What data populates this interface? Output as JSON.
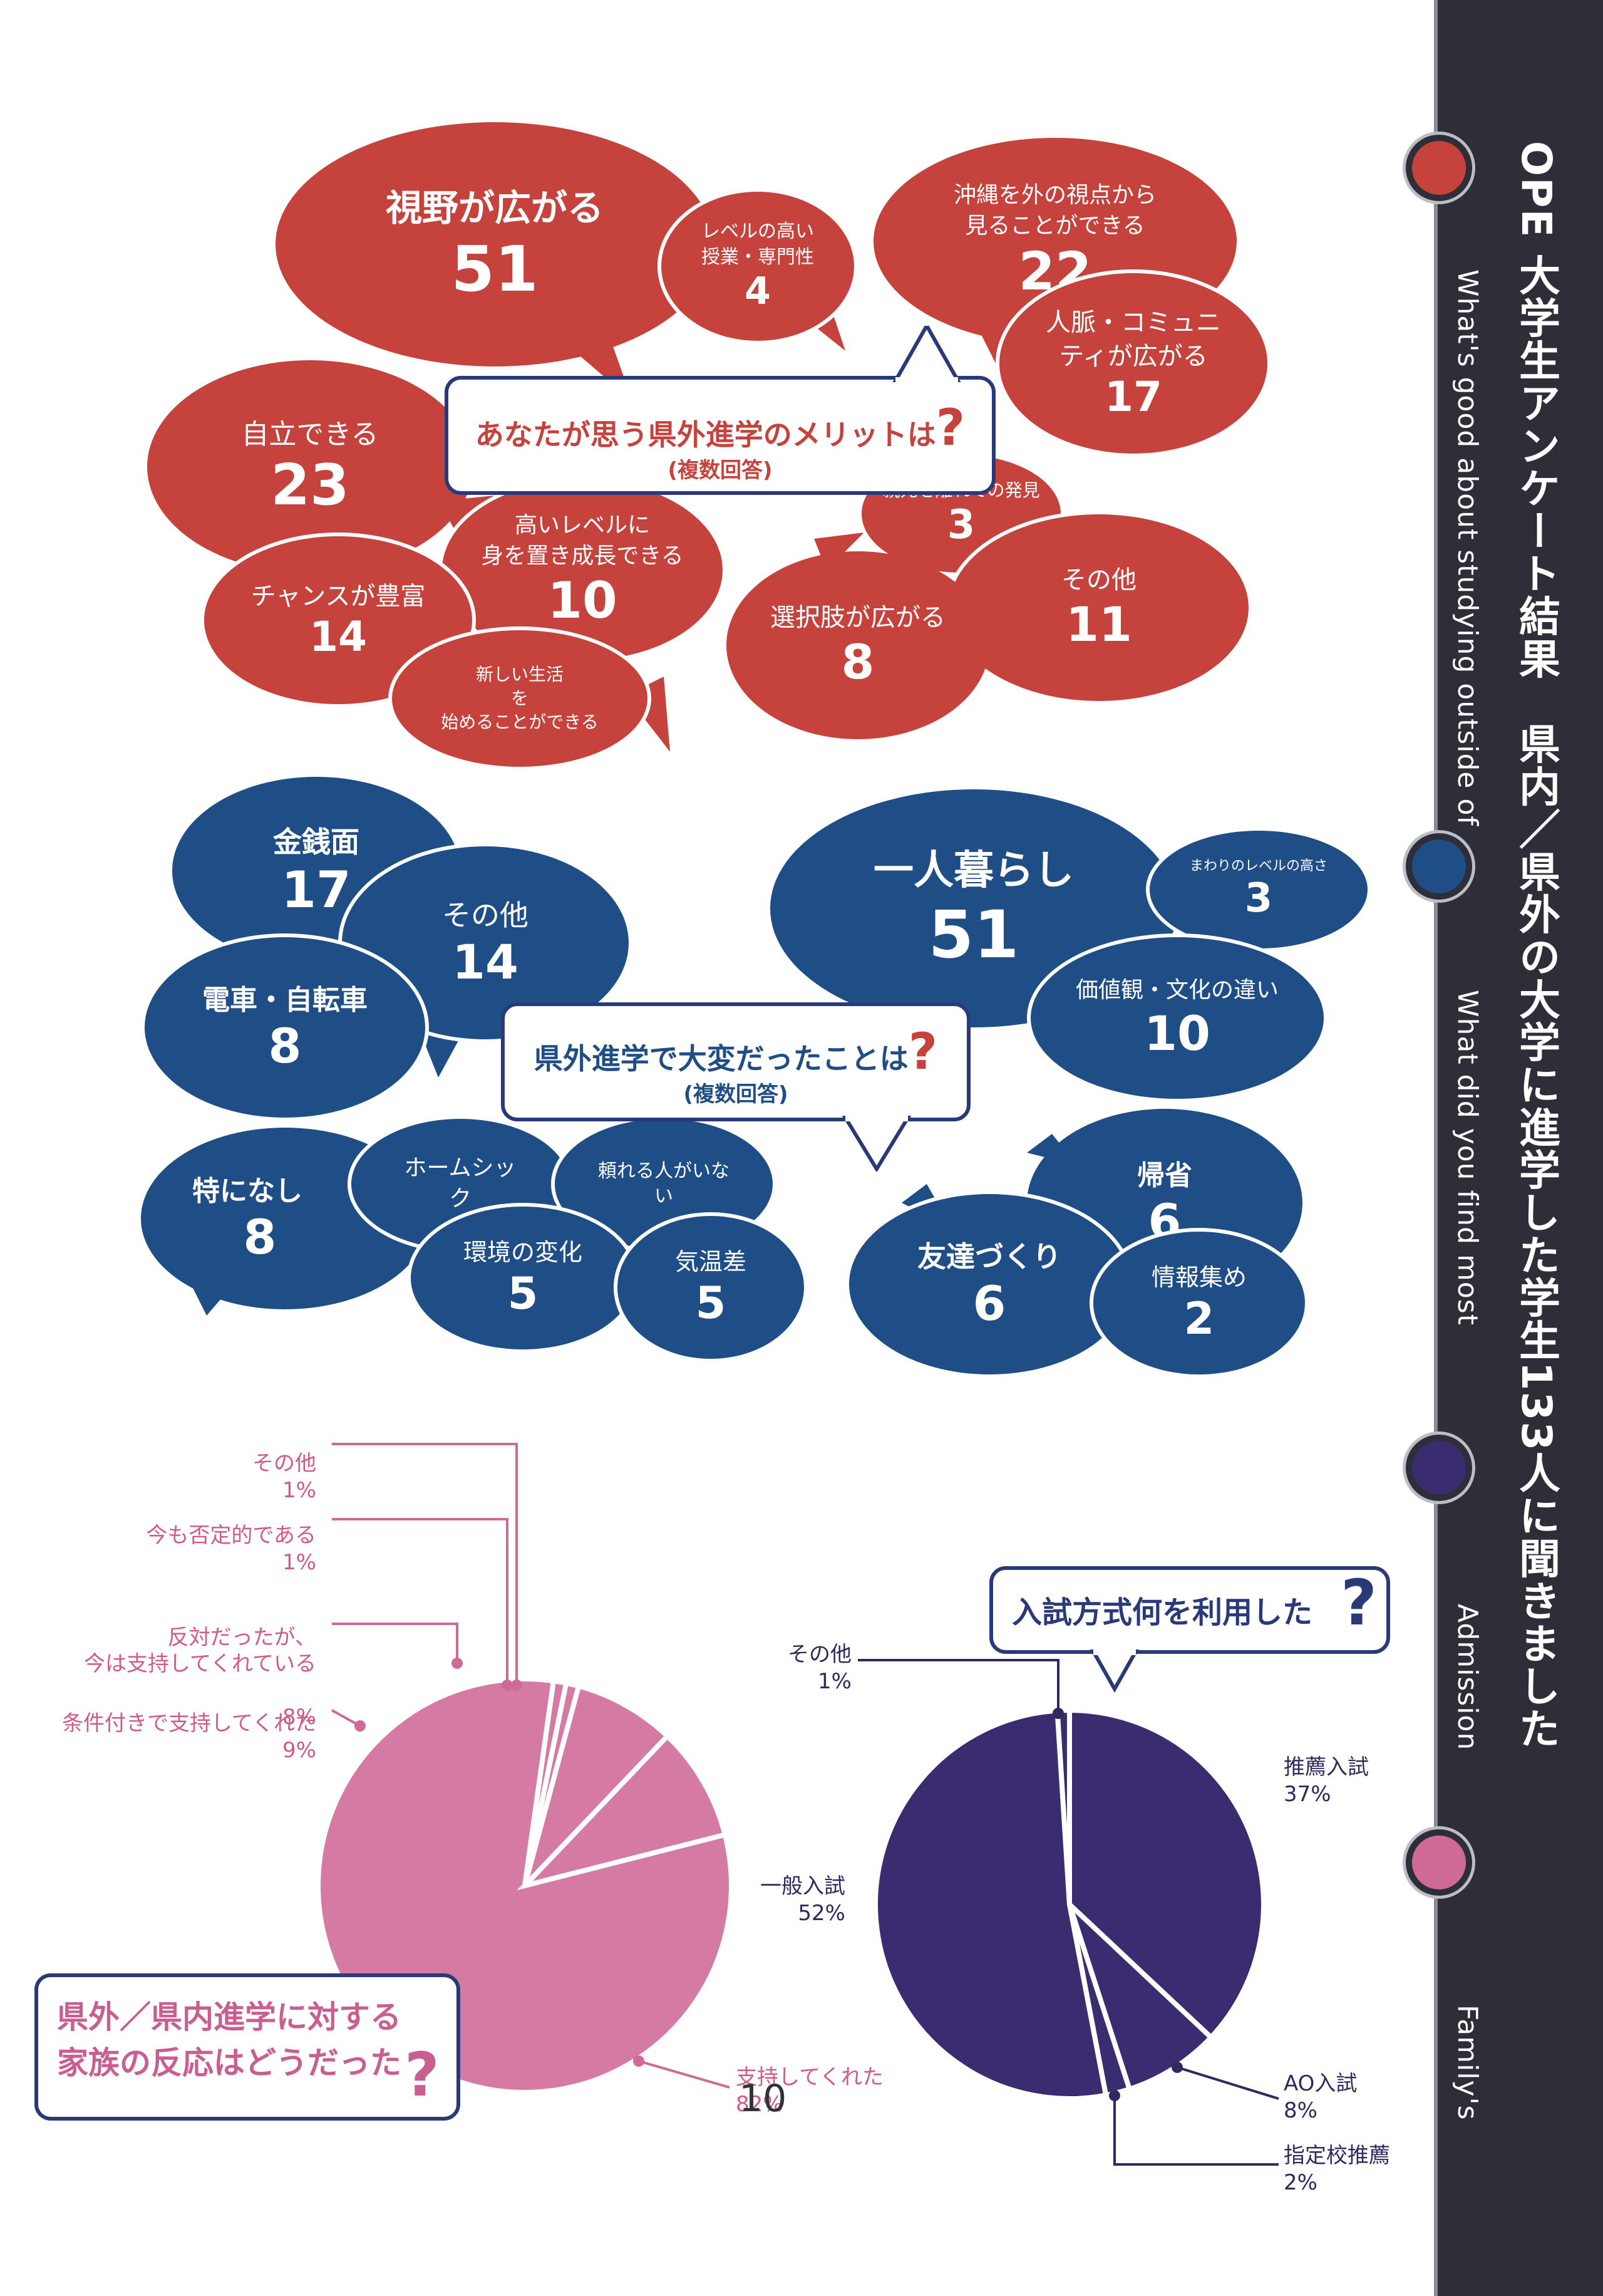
{
  "sidebar": {
    "title": "OPE 大学生アンケート結果　県内／県外の大学に進学した学生133人に聞きました",
    "sections": [
      {
        "label": "What's good about studying outside of",
        "color": "#c6423d"
      },
      {
        "label": "What did you find most",
        "color": "#1f4d86"
      },
      {
        "label": "Admission",
        "color": "#3a2c6e"
      },
      {
        "label": "Family's",
        "color": "#cf6a95"
      }
    ]
  },
  "merits": {
    "question": "あなたが思う県外進学のメリットは",
    "qmark": "?",
    "note": "(複数回答)",
    "items": [
      {
        "label": "視野が広がる",
        "value": "51"
      },
      {
        "label": "レベルの高い\n授業・専門性",
        "value": "4"
      },
      {
        "label": "沖縄を外の視点から\n見ることができる",
        "value": "22"
      },
      {
        "label": "人脈・コミュニ\nティが広がる",
        "value": "17"
      },
      {
        "label": "自立できる",
        "value": "23"
      },
      {
        "label": "高いレベルに\n身を置き成長できる",
        "value": "10"
      },
      {
        "label": "チャンスが豊富",
        "value": "14"
      },
      {
        "label": "新しい生活\nを\n始めることができる",
        "value": ""
      },
      {
        "label": "親元を離れての発見",
        "value": "3"
      },
      {
        "label": "選択肢が広がる",
        "value": "8"
      },
      {
        "label": "その他",
        "value": "11"
      }
    ]
  },
  "hardships": {
    "question": "県外進学で大変だったことは",
    "qmark": "?",
    "note": "(複数回答)",
    "items": [
      {
        "label": "金銭面",
        "value": "17"
      },
      {
        "label": "その他",
        "value": "14"
      },
      {
        "label": "電車・自転車",
        "value": "8"
      },
      {
        "label": "一人暮らし",
        "value": "51"
      },
      {
        "label": "まわりのレベルの高さ",
        "value": "3"
      },
      {
        "label": "価値観・文化の違い",
        "value": "10"
      },
      {
        "label": "特になし",
        "value": "8"
      },
      {
        "label": "ホームシッ\nク",
        "value": ""
      },
      {
        "label": "頼れる人がいな\nい",
        "value": ""
      },
      {
        "label": "環境の変化",
        "value": "5"
      },
      {
        "label": "気温差",
        "value": "5"
      },
      {
        "label": "帰省",
        "value": "6"
      },
      {
        "label": "友達づくり",
        "value": "6"
      },
      {
        "label": "情報集め",
        "value": "2"
      }
    ]
  },
  "chart_data": [
    {
      "type": "pie",
      "title": "県外／県内進学に対する家族の反応はどうだった",
      "qmark": "?",
      "color": "#d57aa3",
      "slices": [
        {
          "label": "支持してくれた",
          "pct": "82%",
          "value": 82
        },
        {
          "label": "条件付きで支持してくれた",
          "pct": "9%",
          "value": 9
        },
        {
          "label": "反対だったが、\n今は支持してくれている",
          "pct": "8%",
          "value": 8
        },
        {
          "label": "今も否定的である",
          "pct": "1%",
          "value": 1
        },
        {
          "label": "その他",
          "pct": "1%",
          "value": 1
        }
      ]
    },
    {
      "type": "pie",
      "title": "入試方式何を利用した",
      "qmark": "?",
      "color": "#3a2c6e",
      "slices": [
        {
          "label": "推薦入試",
          "pct": "37%",
          "value": 37
        },
        {
          "label": "AO入試",
          "pct": "8%",
          "value": 8
        },
        {
          "label": "指定校推薦",
          "pct": "2%",
          "value": 2
        },
        {
          "label": "一般入試",
          "pct": "52%",
          "value": 52
        },
        {
          "label": "その他",
          "pct": "1%",
          "value": 1
        }
      ]
    }
  ],
  "page_number": "10"
}
